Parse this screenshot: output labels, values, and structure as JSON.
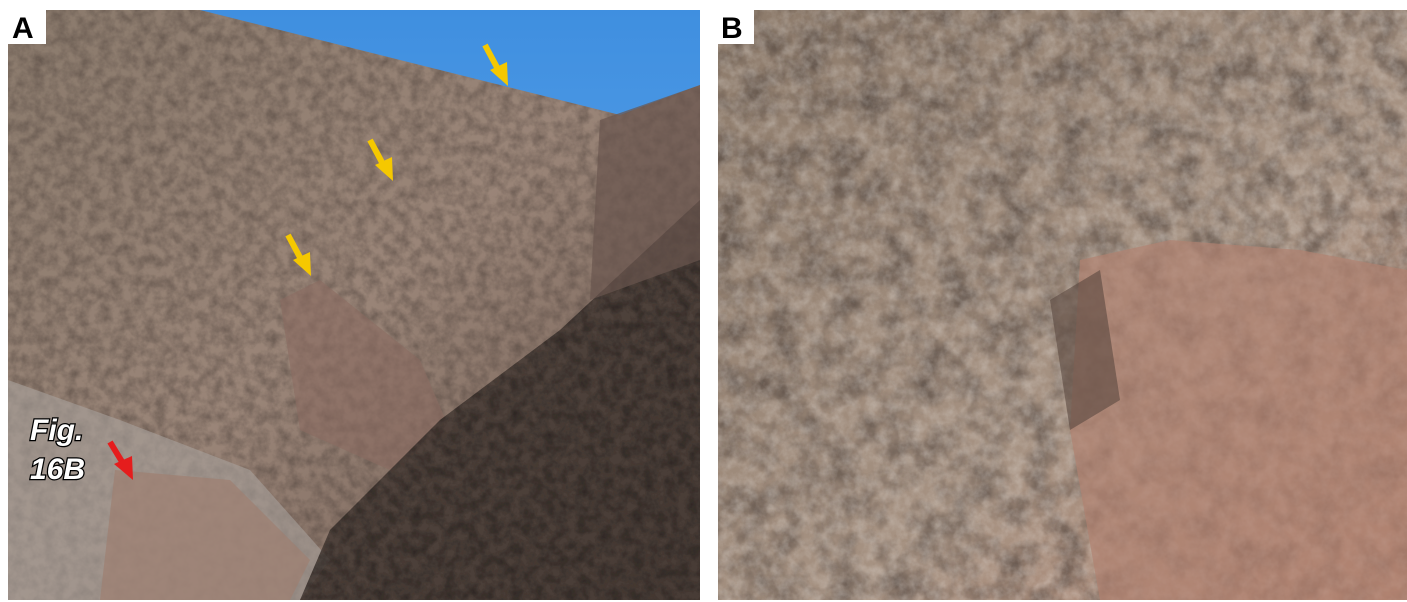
{
  "panels": [
    {
      "label": "A",
      "annotation": [
        "Fig.",
        "16B"
      ]
    },
    {
      "label": "B"
    }
  ]
}
